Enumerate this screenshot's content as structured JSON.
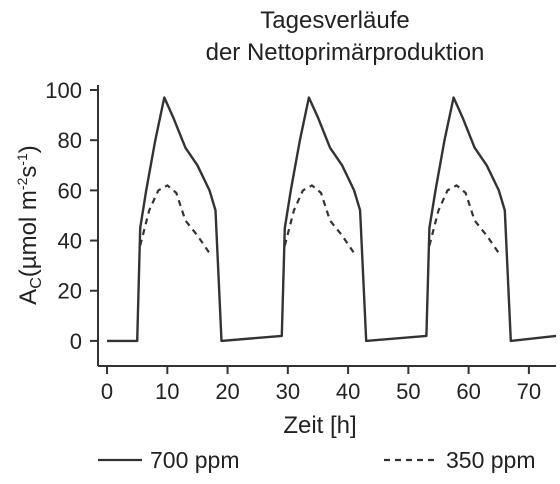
{
  "chart_data": {
    "type": "line",
    "title_line1": "Tagesverläufe",
    "title_line2": "der Nettoprimärproduktion",
    "xlabel": "Zeit [h]",
    "ylabel_main": "A",
    "ylabel_sub": "C",
    "ylabel_rest": "(µmol m",
    "ylabel_sup1": "-2",
    "ylabel_s": "s",
    "ylabel_sup2": "-1",
    "ylabel_close": ")",
    "xlim": [
      -1.5,
      74.5
    ],
    "ylim": [
      -10,
      102
    ],
    "xticks": [
      0,
      10,
      20,
      30,
      40,
      50,
      60,
      70
    ],
    "yticks": [
      0,
      20,
      40,
      60,
      80,
      100
    ],
    "legend_position": "bottom",
    "series": [
      {
        "name": "700 ppm",
        "style": "solid",
        "color": "#333333",
        "points": [
          [
            0,
            0
          ],
          [
            5,
            0
          ],
          [
            5.5,
            45
          ],
          [
            6.5,
            60
          ],
          [
            8,
            80
          ],
          [
            9.5,
            97
          ],
          [
            11,
            89
          ],
          [
            13,
            77
          ],
          [
            15,
            70
          ],
          [
            17,
            60
          ],
          [
            18,
            52
          ],
          [
            19,
            0
          ],
          [
            29,
            2
          ],
          [
            29.5,
            45
          ],
          [
            30.5,
            60
          ],
          [
            32,
            80
          ],
          [
            33.5,
            97
          ],
          [
            35,
            89
          ],
          [
            37,
            77
          ],
          [
            39,
            70
          ],
          [
            41,
            60
          ],
          [
            42,
            52
          ],
          [
            43,
            0
          ],
          [
            53,
            2
          ],
          [
            53.5,
            45
          ],
          [
            54.5,
            60
          ],
          [
            56,
            80
          ],
          [
            57.5,
            97
          ],
          [
            59,
            89
          ],
          [
            61,
            77
          ],
          [
            63,
            70
          ],
          [
            65,
            60
          ],
          [
            66,
            52
          ],
          [
            67,
            0
          ],
          [
            74.5,
            2
          ]
        ]
      },
      {
        "name": "350 ppm",
        "style": "dashed",
        "color": "#333333",
        "points": [
          [
            5.5,
            38
          ],
          [
            7,
            52
          ],
          [
            8.5,
            60
          ],
          [
            10,
            62
          ],
          [
            11.5,
            59
          ],
          [
            13,
            48
          ],
          [
            15,
            42
          ],
          [
            17,
            35
          ],
          [
            29.5,
            38
          ],
          [
            31,
            52
          ],
          [
            32.5,
            60
          ],
          [
            34,
            62
          ],
          [
            35.5,
            59
          ],
          [
            37,
            48
          ],
          [
            39,
            42
          ],
          [
            41,
            35
          ],
          [
            53.5,
            38
          ],
          [
            55,
            52
          ],
          [
            56.5,
            60
          ],
          [
            58,
            62
          ],
          [
            59.5,
            59
          ],
          [
            61,
            48
          ],
          [
            63,
            42
          ],
          [
            65,
            35
          ]
        ]
      }
    ]
  }
}
